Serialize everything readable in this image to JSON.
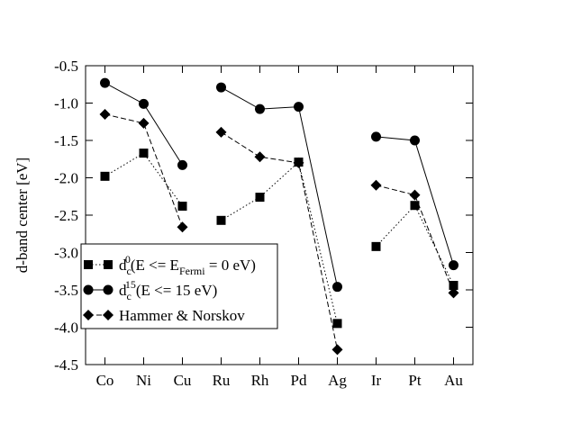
{
  "chart_data": {
    "type": "line",
    "y_label": "d-band center [eV]",
    "categories": [
      "Co",
      "Ni",
      "Cu",
      "Ru",
      "Rh",
      "Pd",
      "Ag",
      "Ir",
      "Pt",
      "Au"
    ],
    "segments": [
      3,
      4,
      3
    ],
    "ylim": [
      -4.5,
      -0.5
    ],
    "yticks": [
      {
        "value": -4.5,
        "label": "-4.5"
      },
      {
        "value": -4,
        "label": "-4.0"
      },
      -3.5,
      {
        "value": -3,
        "label": "-3.0"
      },
      -2.5,
      {
        "value": -2,
        "label": "-2.0"
      },
      -1.5,
      {
        "value": -1,
        "label": "-1.0"
      },
      -0.5
    ],
    "legend": "lower left",
    "series": [
      {
        "name": [
          "d",
          "c",
          "0",
          "(E <= E",
          "Fermi",
          " = 0 eV)"
        ],
        "name_style": [
          "normal",
          "sub",
          "sup",
          "normal",
          "sub",
          "normal"
        ],
        "color": "#000000",
        "marker": "square",
        "line": "dotted",
        "values": [
          -1.98,
          -1.67,
          -2.38,
          -2.57,
          -2.26,
          -1.79,
          -3.95,
          -2.92,
          -2.37,
          -3.44
        ]
      },
      {
        "name": [
          "d",
          "c",
          "15",
          "(E <= 15 eV)"
        ],
        "name_style": [
          "normal",
          "sub",
          "sup",
          "normal"
        ],
        "color": "#000000",
        "marker": "circle",
        "line": "solid",
        "values": [
          -0.73,
          -1.01,
          -1.83,
          -0.79,
          -1.08,
          -1.05,
          -3.46,
          -1.45,
          -1.5,
          -3.17
        ]
      },
      {
        "name": [
          "Hammer & Norskov"
        ],
        "name_style": [
          "normal"
        ],
        "color": "#000000",
        "marker": "diamond",
        "line": "dashed",
        "values": [
          -1.15,
          -1.27,
          -2.66,
          -1.39,
          -1.72,
          -1.8,
          -4.3,
          -2.1,
          -2.23,
          -3.54
        ]
      }
    ]
  }
}
